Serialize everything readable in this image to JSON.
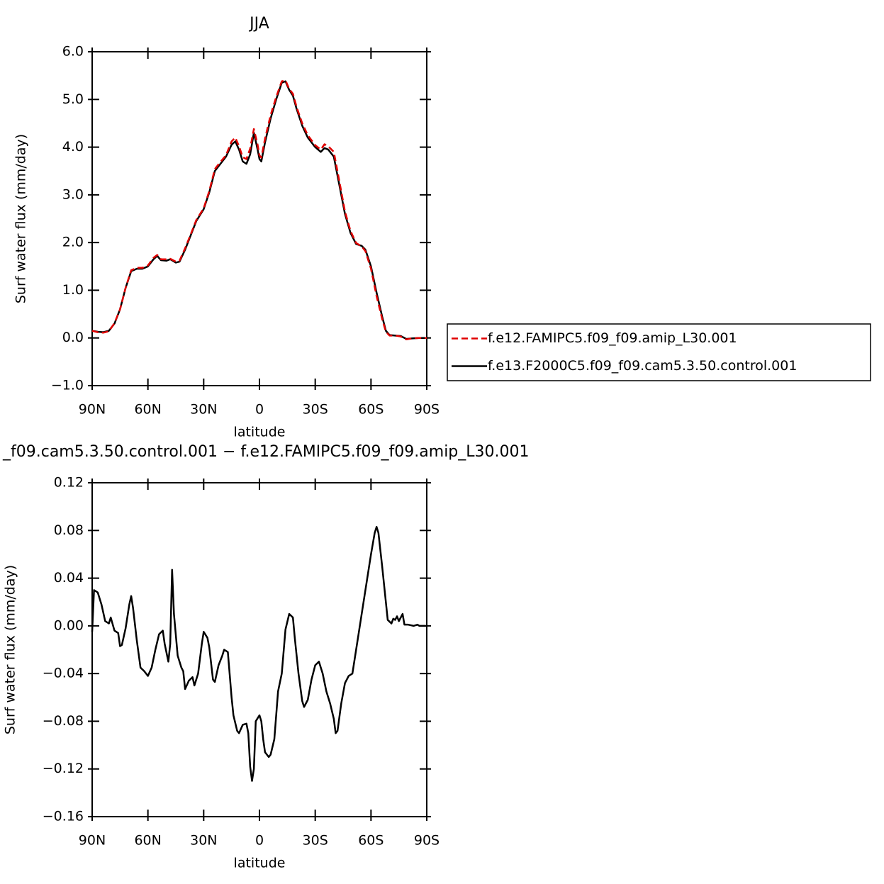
{
  "chart_data": [
    {
      "type": "line",
      "title": "JJA",
      "x_label": "latitude",
      "y_label": "Surf water flux (mm/day)",
      "xlim": [
        90,
        -90
      ],
      "xticks": [
        {
          "value": 90,
          "label": "90N"
        },
        {
          "value": 60,
          "label": "60N"
        },
        {
          "value": 30,
          "label": "30N"
        },
        0,
        {
          "value": -30,
          "label": "30S"
        },
        {
          "value": -60,
          "label": "60S"
        },
        {
          "value": -90,
          "label": "90S"
        }
      ],
      "ylim": [
        -1,
        6
      ],
      "yticks": [
        {
          "value": 6,
          "label": "6.0"
        },
        {
          "value": 5,
          "label": "5.0"
        },
        {
          "value": 4,
          "label": "4.0"
        },
        {
          "value": 3,
          "label": "3.0"
        },
        {
          "value": 2,
          "label": "2.0"
        },
        {
          "value": 1,
          "label": "1.0"
        },
        {
          "value": 0,
          "label": "0.0"
        },
        {
          "value": -1,
          "label": "−1.0"
        }
      ],
      "legend": "right",
      "x": [
        90,
        87,
        84,
        81,
        78,
        75,
        72,
        69,
        66,
        63,
        60,
        57,
        55,
        53,
        50,
        48,
        45,
        43,
        40,
        37,
        34,
        30,
        27,
        24,
        21,
        18,
        15,
        13,
        11,
        9,
        7,
        5,
        3,
        1,
        0,
        -1,
        -3,
        -6,
        -9,
        -12,
        -14,
        -16,
        -18,
        -20,
        -23,
        -26,
        -30,
        -33,
        -35,
        -37,
        -40,
        -43,
        -46,
        -49,
        -52,
        -55,
        -57,
        -60,
        -63,
        -66,
        -68,
        -70,
        -73,
        -76,
        -79,
        -82,
        -86,
        -90
      ],
      "series": [
        {
          "name": "f.e12.FAMIPC5.f09_f09.amip_L30.001",
          "color": "#e00000",
          "dash": "dashed",
          "values": [
            0.15,
            0.12,
            0.11,
            0.14,
            0.31,
            0.6,
            1.05,
            1.42,
            1.47,
            1.47,
            1.52,
            1.68,
            1.74,
            1.65,
            1.65,
            1.66,
            1.6,
            1.62,
            1.88,
            2.17,
            2.47,
            2.72,
            3.08,
            3.54,
            3.69,
            3.83,
            4.12,
            4.2,
            4.02,
            3.79,
            3.75,
            3.97,
            4.38,
            4.05,
            3.83,
            3.78,
            4.18,
            4.67,
            5.05,
            5.38,
            5.4,
            5.22,
            5.12,
            4.84,
            4.5,
            4.25,
            4.04,
            3.95,
            4.06,
            4.02,
            3.9,
            3.28,
            2.65,
            2.24,
            1.99,
            1.92,
            1.82,
            1.45,
            0.88,
            0.4,
            0.13,
            0.05,
            0.05,
            0.03,
            -0.03,
            -0.01,
            0.0,
            0.0
          ]
        },
        {
          "name": "f.e13.F2000C5.f09_f09.cam5.3.50.control.001",
          "color": "#000000",
          "dash": "solid",
          "values": [
            0.15,
            0.13,
            0.12,
            0.15,
            0.3,
            0.6,
            1.05,
            1.4,
            1.45,
            1.45,
            1.5,
            1.65,
            1.72,
            1.63,
            1.62,
            1.65,
            1.58,
            1.6,
            1.85,
            2.15,
            2.45,
            2.7,
            3.05,
            3.5,
            3.65,
            3.8,
            4.05,
            4.12,
            3.95,
            3.7,
            3.65,
            3.85,
            4.3,
            3.95,
            3.75,
            3.7,
            4.1,
            4.6,
            5.0,
            5.35,
            5.38,
            5.2,
            5.08,
            4.8,
            4.45,
            4.2,
            4.0,
            3.9,
            3.98,
            3.95,
            3.8,
            3.2,
            2.6,
            2.2,
            1.97,
            1.93,
            1.85,
            1.5,
            0.95,
            0.45,
            0.15,
            0.06,
            0.05,
            0.04,
            -0.02,
            -0.01,
            0.0,
            0.0
          ]
        }
      ]
    },
    {
      "type": "line",
      "title": "_f09.cam5.3.50.control.001 − f.e12.FAMIPC5.f09_f09.amip_L30.001",
      "x_label": "latitude",
      "y_label": "Surf water flux (mm/day)",
      "xlim": [
        90,
        -90
      ],
      "xticks": [
        {
          "value": 90,
          "label": "90N"
        },
        {
          "value": 60,
          "label": "60N"
        },
        {
          "value": 30,
          "label": "30N"
        },
        0,
        {
          "value": -30,
          "label": "30S"
        },
        {
          "value": -60,
          "label": "60S"
        },
        {
          "value": -90,
          "label": "90S"
        }
      ],
      "ylim": [
        -0.16,
        0.12
      ],
      "yticks": [
        {
          "value": 0.12,
          "label": "0.12"
        },
        {
          "value": 0.08,
          "label": "0.08"
        },
        {
          "value": 0.04,
          "label": "0.04"
        },
        {
          "value": 0,
          "label": "0.00"
        },
        {
          "value": -0.04,
          "label": "−0.04"
        },
        {
          "value": -0.08,
          "label": "−0.08"
        },
        {
          "value": -0.12,
          "label": "−0.12"
        },
        {
          "value": -0.16,
          "label": "−0.16"
        }
      ],
      "x": [
        90,
        89,
        87,
        85,
        83,
        81,
        80,
        78,
        76,
        75,
        74,
        72,
        70,
        69,
        68,
        66,
        64,
        62,
        60,
        58,
        56,
        54,
        52,
        51,
        49,
        48,
        47,
        46,
        44,
        42,
        41,
        40,
        38,
        36,
        35,
        33,
        31,
        30,
        28,
        27,
        25,
        24,
        22,
        20,
        19,
        17,
        15,
        14,
        12,
        11,
        9,
        7,
        6,
        5,
        4,
        3,
        2,
        0,
        -1,
        -2,
        -3,
        -5,
        -6,
        -8,
        -10,
        -12,
        -14,
        -16,
        -18,
        -19,
        -21,
        -23,
        -24,
        -26,
        -28,
        -30,
        -32,
        -34,
        -36,
        -38,
        -40,
        -41,
        -42,
        -44,
        -46,
        -48,
        -50,
        -52,
        -54,
        -56,
        -58,
        -60,
        -62,
        -63,
        -64,
        -66,
        -68,
        -69,
        -71,
        -72,
        -73,
        -74,
        -75,
        -77,
        -78,
        -80,
        -83,
        -85,
        -86,
        -90
      ],
      "series": [
        {
          "color": "#000000",
          "dash": "solid",
          "values": [
            -0.005,
            0.03,
            0.028,
            0.018,
            0.004,
            0.002,
            0.007,
            -0.004,
            -0.006,
            -0.017,
            -0.016,
            -0.002,
            0.018,
            0.025,
            0.015,
            -0.012,
            -0.035,
            -0.038,
            -0.042,
            -0.035,
            -0.02,
            -0.007,
            -0.004,
            -0.015,
            -0.03,
            -0.015,
            0.047,
            0.01,
            -0.025,
            -0.035,
            -0.038,
            -0.053,
            -0.046,
            -0.043,
            -0.05,
            -0.04,
            -0.015,
            -0.005,
            -0.01,
            -0.018,
            -0.045,
            -0.047,
            -0.033,
            -0.025,
            -0.02,
            -0.022,
            -0.06,
            -0.075,
            -0.088,
            -0.09,
            -0.083,
            -0.082,
            -0.09,
            -0.118,
            -0.13,
            -0.12,
            -0.08,
            -0.075,
            -0.08,
            -0.095,
            -0.106,
            -0.11,
            -0.108,
            -0.095,
            -0.055,
            -0.04,
            -0.003,
            0.01,
            0.007,
            -0.01,
            -0.04,
            -0.063,
            -0.068,
            -0.062,
            -0.045,
            -0.033,
            -0.03,
            -0.04,
            -0.055,
            -0.065,
            -0.078,
            -0.09,
            -0.088,
            -0.065,
            -0.048,
            -0.042,
            -0.04,
            -0.02,
            0.0,
            0.02,
            0.04,
            0.06,
            0.078,
            0.083,
            0.078,
            0.05,
            0.02,
            0.005,
            0.002,
            0.006,
            0.005,
            0.008,
            0.004,
            0.01,
            0.001,
            0.001,
            0.0,
            0.001,
            0.0,
            0.0
          ]
        }
      ]
    }
  ]
}
